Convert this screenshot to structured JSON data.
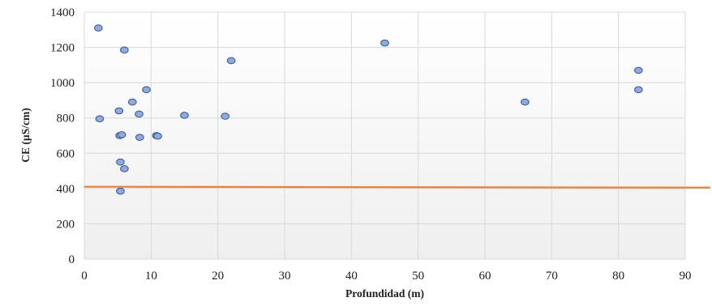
{
  "chart_data": {
    "type": "scatter",
    "title": "",
    "xlabel": "Profundidad  (m)",
    "ylabel": "CE  (µS/cm)",
    "xlim": [
      0,
      90
    ],
    "ylim": [
      0,
      1400
    ],
    "x_ticks": [
      0,
      10,
      20,
      30,
      40,
      50,
      60,
      70,
      80,
      90
    ],
    "y_ticks": [
      0,
      200,
      400,
      600,
      800,
      1000,
      1200,
      1400
    ],
    "grid": true,
    "legend": "none",
    "colors": {
      "plot_bg_top": "#ffffff",
      "plot_bg_bottom": "#efefef",
      "grid": "#d9d9d9",
      "point_fill": "#8faadc",
      "point_stroke": "#2f5597",
      "reference_line": "#ed7d31"
    },
    "series": [
      {
        "points": [
          {
            "x": 2.1,
            "y": 1310
          },
          {
            "x": 2.3,
            "y": 795
          },
          {
            "x": 5.2,
            "y": 840
          },
          {
            "x": 5.3,
            "y": 700
          },
          {
            "x": 5.6,
            "y": 705
          },
          {
            "x": 5.4,
            "y": 550
          },
          {
            "x": 6.0,
            "y": 512
          },
          {
            "x": 5.4,
            "y": 385
          },
          {
            "x": 6.0,
            "y": 1185
          },
          {
            "x": 7.2,
            "y": 890
          },
          {
            "x": 8.2,
            "y": 822
          },
          {
            "x": 8.3,
            "y": 690
          },
          {
            "x": 9.3,
            "y": 960
          },
          {
            "x": 10.8,
            "y": 700
          },
          {
            "x": 11.0,
            "y": 697
          },
          {
            "x": 15.0,
            "y": 815
          },
          {
            "x": 21.1,
            "y": 810
          },
          {
            "x": 22.0,
            "y": 1125
          },
          {
            "x": 45.0,
            "y": 1225
          },
          {
            "x": 66.0,
            "y": 890
          },
          {
            "x": 83.0,
            "y": 1070
          },
          {
            "x": 83.0,
            "y": 960
          }
        ]
      }
    ],
    "reference_line": {
      "x0": 0,
      "y0": 410,
      "x1": 94,
      "y1": 405
    }
  }
}
